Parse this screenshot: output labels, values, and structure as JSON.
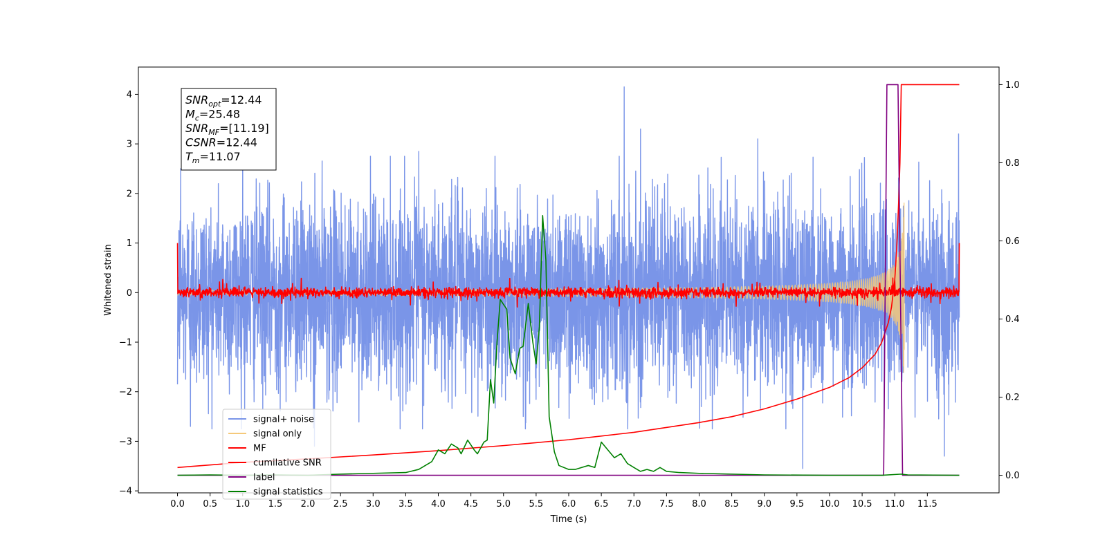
{
  "chart_data": {
    "type": "line",
    "xlabel": "Time (s)",
    "ylabel": "Whitened strain",
    "xlim": [
      -0.6,
      12.6
    ],
    "ylim": [
      -4.04,
      4.55
    ],
    "y2lim": [
      -0.045,
      1.045
    ],
    "x_ticks": [
      0.0,
      0.5,
      1.0,
      1.5,
      2.0,
      2.5,
      3.0,
      3.5,
      4.0,
      4.5,
      5.0,
      5.5,
      6.0,
      6.5,
      7.0,
      7.5,
      8.0,
      8.5,
      9.0,
      9.5,
      10.0,
      10.5,
      11.0,
      11.5
    ],
    "x_tick_labels": [
      "0.0",
      "0.5",
      "1.0",
      "1.5",
      "2.0",
      "2.5",
      "3.0",
      "3.5",
      "4.0",
      "4.5",
      "5.0",
      "5.5",
      "6.0",
      "6.5",
      "7.0",
      "7.5",
      "8.0",
      "8.5",
      "9.0",
      "9.5",
      "10.0",
      "10.5",
      "11.0",
      "11.5"
    ],
    "y_ticks": [
      -4,
      -3,
      -2,
      -1,
      0,
      1,
      2,
      3,
      4
    ],
    "y_tick_labels": [
      "−4",
      "−3",
      "−2",
      "−1",
      "0",
      "1",
      "2",
      "3",
      "4"
    ],
    "y2_ticks": [
      0.0,
      0.2,
      0.4,
      0.6,
      0.8,
      1.0
    ],
    "y2_tick_labels": [
      "0.0",
      "0.2",
      "0.4",
      "0.6",
      "0.8",
      "1.0"
    ],
    "annotation": [
      {
        "base": "SNR",
        "sub": "opt",
        "rest": "=12.44"
      },
      {
        "base": "M",
        "sub": "c",
        "rest": "=25.48"
      },
      {
        "base": "SNR",
        "sub": "MF",
        "rest": "=[11.19]"
      },
      {
        "base": "CSNR",
        "sub": "",
        "rest": "=12.44"
      },
      {
        "base": "T",
        "sub": "m",
        "rest": "=11.07"
      }
    ],
    "legend_position": "lower-left",
    "series": [
      {
        "name": "signal+ noise",
        "axis": "left",
        "color": "#7a95e8",
        "kind": "noise",
        "x_range": [
          0.0,
          11.99
        ],
        "amplitude_std": 1.0,
        "peaks_high": [
          [
            0.05,
            2.5
          ],
          [
            3.7,
            2.85
          ],
          [
            6.85,
            4.15
          ],
          [
            7.1,
            3.3
          ],
          [
            8.9,
            3.1
          ],
          [
            11.98,
            3.2
          ],
          [
            1.0,
            2.8
          ]
        ],
        "peaks_low": [
          [
            0.0,
            -1.85
          ],
          [
            9.59,
            -3.55
          ],
          [
            11.76,
            -3.3
          ],
          [
            2.1,
            -3.1
          ],
          [
            0.2,
            -2.7
          ]
        ]
      },
      {
        "name": "signal only",
        "axis": "left",
        "color": "#f5c97a",
        "kind": "chirp",
        "x_range": [
          0.0,
          11.15
        ],
        "end_amplitude": 2.2
      },
      {
        "name": "MF",
        "axis": "left",
        "color": "#ff0000",
        "kind": "noise",
        "x_range": [
          0.0,
          11.99
        ],
        "amplitude_std": 0.05,
        "endpoints": [
          [
            0.0,
            1.0
          ],
          [
            11.99,
            1.0
          ]
        ]
      },
      {
        "name": "cumilative SNR",
        "axis": "right",
        "color": "#ff0000",
        "kind": "curve",
        "points": [
          [
            0.0,
            0.02
          ],
          [
            1.0,
            0.033
          ],
          [
            2.0,
            0.042
          ],
          [
            3.0,
            0.052
          ],
          [
            4.0,
            0.063
          ],
          [
            5.0,
            0.076
          ],
          [
            6.0,
            0.091
          ],
          [
            7.0,
            0.11
          ],
          [
            8.0,
            0.135
          ],
          [
            8.5,
            0.15
          ],
          [
            9.0,
            0.17
          ],
          [
            9.5,
            0.195
          ],
          [
            10.0,
            0.225
          ],
          [
            10.3,
            0.25
          ],
          [
            10.5,
            0.275
          ],
          [
            10.7,
            0.31
          ],
          [
            10.8,
            0.34
          ],
          [
            10.9,
            0.39
          ],
          [
            10.95,
            0.43
          ],
          [
            11.0,
            0.5
          ],
          [
            11.03,
            0.58
          ],
          [
            11.06,
            0.7
          ],
          [
            11.08,
            0.8
          ],
          [
            11.1,
            1.0
          ],
          [
            11.99,
            1.0
          ]
        ]
      },
      {
        "name": "label",
        "axis": "right",
        "color": "#800080",
        "kind": "curve",
        "points": [
          [
            0.0,
            0.0
          ],
          [
            10.83,
            0.0
          ],
          [
            10.88,
            1.0
          ],
          [
            11.05,
            1.0
          ],
          [
            11.12,
            0.0
          ],
          [
            11.99,
            0.0
          ]
        ]
      },
      {
        "name": "signal statistics",
        "axis": "right",
        "color": "#008000",
        "kind": "curve",
        "points": [
          [
            0.0,
            0.0
          ],
          [
            0.5,
            0.001
          ],
          [
            1.0,
            0.0
          ],
          [
            1.5,
            0.001
          ],
          [
            2.0,
            0.0
          ],
          [
            2.5,
            0.003
          ],
          [
            3.0,
            0.005
          ],
          [
            3.5,
            0.007
          ],
          [
            3.7,
            0.015
          ],
          [
            3.9,
            0.035
          ],
          [
            4.0,
            0.065
          ],
          [
            4.1,
            0.055
          ],
          [
            4.2,
            0.08
          ],
          [
            4.3,
            0.07
          ],
          [
            4.35,
            0.055
          ],
          [
            4.45,
            0.09
          ],
          [
            4.55,
            0.065
          ],
          [
            4.6,
            0.055
          ],
          [
            4.7,
            0.085
          ],
          [
            4.75,
            0.09
          ],
          [
            4.8,
            0.245
          ],
          [
            4.85,
            0.185
          ],
          [
            4.9,
            0.34
          ],
          [
            4.95,
            0.45
          ],
          [
            5.05,
            0.425
          ],
          [
            5.1,
            0.3
          ],
          [
            5.18,
            0.26
          ],
          [
            5.25,
            0.325
          ],
          [
            5.3,
            0.33
          ],
          [
            5.38,
            0.44
          ],
          [
            5.45,
            0.34
          ],
          [
            5.5,
            0.285
          ],
          [
            5.55,
            0.38
          ],
          [
            5.6,
            0.665
          ],
          [
            5.65,
            0.55
          ],
          [
            5.7,
            0.15
          ],
          [
            5.78,
            0.06
          ],
          [
            5.85,
            0.025
          ],
          [
            6.0,
            0.015
          ],
          [
            6.1,
            0.015
          ],
          [
            6.2,
            0.02
          ],
          [
            6.3,
            0.025
          ],
          [
            6.4,
            0.02
          ],
          [
            6.5,
            0.085
          ],
          [
            6.6,
            0.065
          ],
          [
            6.7,
            0.045
          ],
          [
            6.8,
            0.055
          ],
          [
            6.9,
            0.03
          ],
          [
            7.0,
            0.02
          ],
          [
            7.1,
            0.01
          ],
          [
            7.2,
            0.015
          ],
          [
            7.3,
            0.01
          ],
          [
            7.4,
            0.02
          ],
          [
            7.5,
            0.01
          ],
          [
            7.7,
            0.007
          ],
          [
            8.0,
            0.005
          ],
          [
            8.5,
            0.003
          ],
          [
            9.0,
            0.001
          ],
          [
            10.0,
            0.0
          ],
          [
            10.8,
            0.0
          ],
          [
            11.1,
            0.003
          ],
          [
            11.2,
            0.001
          ],
          [
            11.99,
            0.0
          ]
        ]
      }
    ]
  }
}
